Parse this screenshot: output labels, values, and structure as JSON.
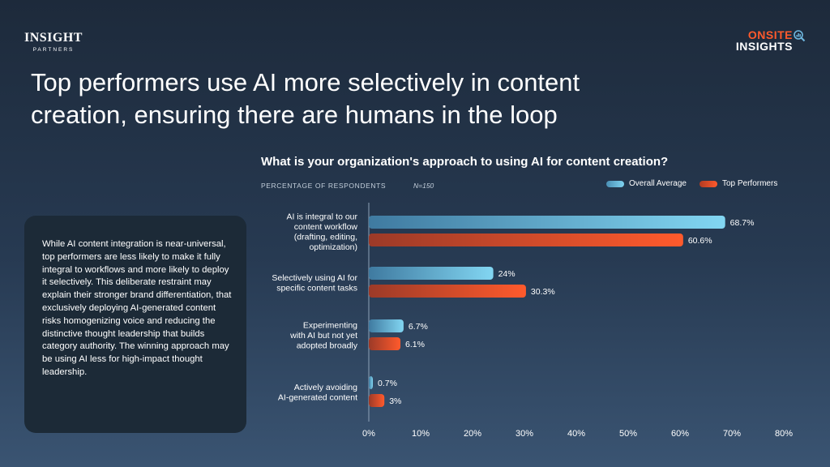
{
  "logo_left": {
    "line1": "INSIGHT",
    "line2": "PARTNERS"
  },
  "logo_right": {
    "line1": "ONSITE",
    "line2": "INSIGHTS",
    "icon": "magnifier-chart-icon"
  },
  "headline": "Top performers use AI more selectively in content creation, ensuring there are humans in the loop",
  "panel_text": "While AI content integration is near-universal, top performers are less likely to make it fully integral to workflows and more likely to deploy it selectively. This deliberate restraint may explain their stronger brand differentiation, that exclusively deploying AI-generated content risks homogenizing voice and reducing the distinctive thought leadership that builds category authority. The winning approach may be using AI less for high-impact thought leadership.",
  "chart_data": {
    "type": "bar",
    "orientation": "horizontal",
    "title": "What is your organization's approach to using AI for content creation?",
    "ylabel": "PERCENTAGE OF RESPONDENTS",
    "note": "N=150",
    "categories": [
      [
        "AI is integral to our",
        "content workflow",
        "(drafting, editing,",
        "optimization)"
      ],
      [
        "Selectively using AI for",
        "specific content tasks"
      ],
      [
        "Experimenting",
        "with AI but not yet",
        "adopted broadly"
      ],
      [
        "Actively avoiding",
        "AI-generated content"
      ]
    ],
    "series": [
      {
        "name": "Overall Average",
        "values": [
          68.7,
          24,
          6.7,
          0.7
        ],
        "labels": [
          "68.7%",
          "24%",
          "6.7%",
          "0.7%"
        ],
        "color": "#7fd3f0"
      },
      {
        "name": "Top Performers",
        "values": [
          60.6,
          30.3,
          6.1,
          3
        ],
        "labels": [
          "60.6%",
          "30.3%",
          "6.1%",
          "3%"
        ],
        "color": "#ff5a2c"
      }
    ],
    "xlim": [
      0,
      80
    ],
    "xticks": [
      "0%",
      "10%",
      "20%",
      "30%",
      "40%",
      "50%",
      "60%",
      "70%",
      "80%"
    ],
    "legend_position": "top-right",
    "grid": false
  }
}
